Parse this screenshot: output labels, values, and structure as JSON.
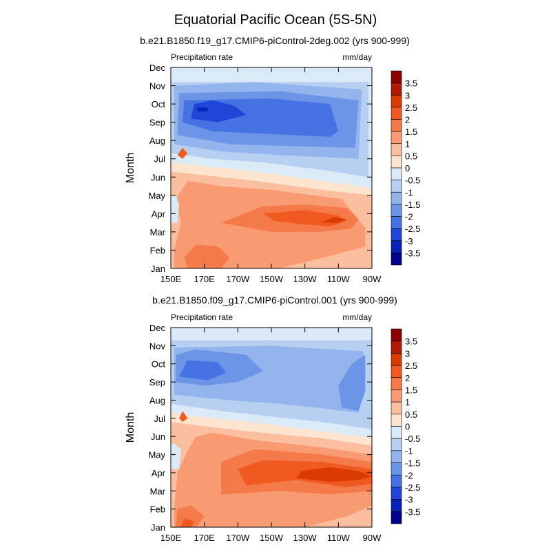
{
  "figure": {
    "title": "Equatorial Pacific Ocean (5S-5N)"
  },
  "colorbar": {
    "labels": [
      "3.5",
      "3",
      "2.5",
      "2",
      "1.5",
      "1",
      "0.5",
      "0",
      "-0.5",
      "-1",
      "-1.5",
      "-2",
      "-2.5",
      "-3",
      "-3.5"
    ],
    "colors": [
      "#8b0000",
      "#b31b00",
      "#d93a00",
      "#f05a20",
      "#f57a4a",
      "#f89a72",
      "#fbbf9f",
      "#fde4cf",
      "#dbeaf7",
      "#b7cff0",
      "#93b4ec",
      "#6d95e7",
      "#4772e3",
      "#2145d7",
      "#0821b9",
      "#00008b"
    ]
  },
  "chart_data": [
    {
      "type": "contour",
      "subtitle": "b.e21.B1850.f19_g17.CMIP6-piControl-2deg.002 (yrs 900-999)",
      "left_label": "Precipitation rate",
      "right_label": "mm/day",
      "ylabel": "Month",
      "xlabel": "",
      "x_ticks": [
        "150E",
        "170E",
        "170W",
        "150W",
        "130W",
        "110W",
        "90W"
      ],
      "y_ticks": [
        "Jan",
        "Feb",
        "Mar",
        "Apr",
        "May",
        "Jun",
        "Jul",
        "Aug",
        "Sep",
        "Oct",
        "Nov",
        "Dec"
      ],
      "xlim": [
        150,
        270
      ],
      "ylim": [
        1,
        12
      ],
      "regions": [
        {
          "level": 0.75,
          "pts": [
            [
              150,
              1
            ],
            [
              270,
              1
            ],
            [
              270,
              5.2
            ],
            [
              240,
              5.6
            ],
            [
              200,
              6.0
            ],
            [
              170,
              6.2
            ],
            [
              150,
              6.5
            ]
          ]
        },
        {
          "level": 1.25,
          "pts": [
            [
              152,
              1
            ],
            [
              215,
              1
            ],
            [
              250,
              1.8
            ],
            [
              266,
              2.2
            ],
            [
              266,
              3.2
            ],
            [
              252,
              4.8
            ],
            [
              210,
              5.3
            ],
            [
              180,
              5.5
            ],
            [
              160,
              5.8
            ],
            [
              153,
              4.8
            ],
            [
              156,
              3.5
            ],
            [
              152,
              2
            ]
          ]
        },
        {
          "level": 1.75,
          "pts": [
            [
              180,
              3.5
            ],
            [
              205,
              4.4
            ],
            [
              230,
              4.5
            ],
            [
              255,
              4.3
            ],
            [
              262,
              3.7
            ],
            [
              258,
              3.2
            ],
            [
              240,
              3.0
            ],
            [
              210,
              3.0
            ]
          ]
        },
        {
          "level": 2.25,
          "pts": [
            [
              205,
              4.0
            ],
            [
              230,
              4.2
            ],
            [
              250,
              3.9
            ],
            [
              255,
              3.6
            ],
            [
              245,
              3.3
            ],
            [
              230,
              3.4
            ],
            [
              212,
              3.6
            ]
          ]
        },
        {
          "level": 2.75,
          "pts": [
            [
              240,
              3.5
            ],
            [
              250,
              3.5
            ],
            [
              255,
              3.7
            ],
            [
              247,
              3.8
            ]
          ]
        },
        {
          "level": 1.75,
          "pts": [
            [
              160,
              1
            ],
            [
              180,
              1
            ],
            [
              185,
              1.6
            ],
            [
              178,
              2.2
            ],
            [
              165,
              2.3
            ],
            [
              158,
              1.6
            ]
          ]
        },
        {
          "level": 0.25,
          "pts": [
            [
              150,
              6.3
            ],
            [
              170,
              6.1
            ],
            [
              200,
              5.8
            ],
            [
              240,
              5.3
            ],
            [
              270,
              5.0
            ],
            [
              270,
              5.4
            ],
            [
              240,
              5.8
            ],
            [
              200,
              6.3
            ],
            [
              170,
              6.6
            ],
            [
              150,
              6.8
            ]
          ]
        },
        {
          "level": -0.25,
          "pts": [
            [
              150,
              3.5
            ],
            [
              154,
              3.5
            ],
            [
              155,
              4.5
            ],
            [
              153,
              5.0
            ],
            [
              150,
              5.0
            ]
          ]
        },
        {
          "level": -0.25,
          "pts": [
            [
              150,
              6.8
            ],
            [
              170,
              6.6
            ],
            [
              200,
              6.3
            ],
            [
              240,
              5.8
            ],
            [
              270,
              5.4
            ],
            [
              270,
              12
            ],
            [
              150,
              12
            ]
          ]
        },
        {
          "level": -0.75,
          "pts": [
            [
              150,
              7.3
            ],
            [
              175,
              7.0
            ],
            [
              205,
              6.8
            ],
            [
              240,
              6.4
            ],
            [
              268,
              6.0
            ],
            [
              268,
              11.2
            ],
            [
              150,
              11.2
            ]
          ]
        },
        {
          "level": -1.25,
          "pts": [
            [
              152,
              7.8
            ],
            [
              180,
              7.4
            ],
            [
              215,
              7.2
            ],
            [
              262,
              7.0
            ],
            [
              264,
              10.8
            ],
            [
              200,
              11.2
            ],
            [
              152,
              11.0
            ]
          ]
        },
        {
          "level": -1.75,
          "pts": [
            [
              154,
              8.3
            ],
            [
              185,
              7.8
            ],
            [
              220,
              7.7
            ],
            [
              260,
              7.6
            ],
            [
              262,
              10.2
            ],
            [
              215,
              10.7
            ],
            [
              155,
              10.6
            ]
          ]
        },
        {
          "level": -2.25,
          "pts": [
            [
              157,
              9.0
            ],
            [
              175,
              8.5
            ],
            [
              200,
              8.4
            ],
            [
              245,
              8.2
            ],
            [
              250,
              8.5
            ],
            [
              245,
              10.0
            ],
            [
              210,
              10.3
            ],
            [
              158,
              10.2
            ]
          ]
        },
        {
          "level": -2.75,
          "pts": [
            [
              162,
              9.2
            ],
            [
              178,
              9.0
            ],
            [
              195,
              9.4
            ],
            [
              188,
              9.9
            ],
            [
              175,
              10.2
            ],
            [
              164,
              10.0
            ]
          ]
        },
        {
          "level": -3.25,
          "pts": [
            [
              166,
              9.6
            ],
            [
              172,
              9.6
            ],
            [
              172,
              9.8
            ],
            [
              166,
              9.8
            ]
          ]
        },
        {
          "level": 2.25,
          "pts": [
            [
              154,
              7.2
            ],
            [
              157,
              7.0
            ],
            [
              160,
              7.3
            ],
            [
              157,
              7.6
            ]
          ]
        }
      ]
    },
    {
      "type": "contour",
      "subtitle": "b.e21.B1850.f09_g17.CMIP6-piControl.001 (yrs 900-999)",
      "left_label": "Precipitation rate",
      "right_label": "mm/day",
      "ylabel": "Month",
      "xlabel": "",
      "x_ticks": [
        "150E",
        "170E",
        "170W",
        "150W",
        "130W",
        "110W",
        "90W"
      ],
      "y_ticks": [
        "Jan",
        "Feb",
        "Mar",
        "Apr",
        "May",
        "Jun",
        "Jul",
        "Aug",
        "Sep",
        "Oct",
        "Nov",
        "Dec"
      ],
      "xlim": [
        150,
        270
      ],
      "ylim": [
        1,
        12
      ],
      "regions": [
        {
          "level": 0.75,
          "pts": [
            [
              150,
              1
            ],
            [
              270,
              1
            ],
            [
              270,
              5.6
            ],
            [
              240,
              6.0
            ],
            [
              200,
              6.4
            ],
            [
              170,
              6.6
            ],
            [
              150,
              7.0
            ]
          ]
        },
        {
          "level": 1.25,
          "pts": [
            [
              152,
              1
            ],
            [
              230,
              1
            ],
            [
              255,
              1.6
            ],
            [
              270,
              2.2
            ],
            [
              270,
              5.0
            ],
            [
              240,
              5.4
            ],
            [
              200,
              5.8
            ],
            [
              175,
              6.2
            ],
            [
              165,
              6.0
            ],
            [
              160,
              5.2
            ],
            [
              154,
              4.0
            ],
            [
              152,
              2
            ]
          ]
        },
        {
          "level": 1.75,
          "pts": [
            [
              180,
              2.8
            ],
            [
              215,
              3.0
            ],
            [
              245,
              2.8
            ],
            [
              270,
              3.0
            ],
            [
              270,
              4.6
            ],
            [
              240,
              5.0
            ],
            [
              200,
              5.3
            ],
            [
              180,
              4.6
            ]
          ]
        },
        {
          "level": 2.25,
          "pts": [
            [
              195,
              3.3
            ],
            [
              225,
              3.6
            ],
            [
              255,
              3.2
            ],
            [
              270,
              3.4
            ],
            [
              270,
              4.2
            ],
            [
              240,
              4.6
            ],
            [
              205,
              4.7
            ],
            [
              190,
              4.2
            ]
          ]
        },
        {
          "level": 2.75,
          "pts": [
            [
              225,
              3.7
            ],
            [
              245,
              3.5
            ],
            [
              262,
              3.6
            ],
            [
              270,
              3.8
            ],
            [
              262,
              4.1
            ],
            [
              245,
              4.3
            ],
            [
              228,
              4.1
            ]
          ]
        },
        {
          "level": 1.75,
          "pts": [
            [
              153,
              1
            ],
            [
              165,
              1
            ],
            [
              170,
              1.6
            ],
            [
              162,
              2.2
            ],
            [
              154,
              2.0
            ]
          ]
        },
        {
          "level": 2.25,
          "pts": [
            [
              156,
              1
            ],
            [
              162,
              1
            ],
            [
              164,
              1.3
            ],
            [
              158,
              1.5
            ]
          ]
        },
        {
          "level": 0.25,
          "pts": [
            [
              150,
              6.8
            ],
            [
              175,
              6.5
            ],
            [
              205,
              6.2
            ],
            [
              240,
              5.9
            ],
            [
              270,
              5.5
            ],
            [
              270,
              5.9
            ],
            [
              240,
              6.3
            ],
            [
              205,
              6.7
            ],
            [
              175,
              7.0
            ],
            [
              150,
              7.3
            ]
          ]
        },
        {
          "level": -0.25,
          "pts": [
            [
              150,
              4.2
            ],
            [
              155,
              4.2
            ],
            [
              156,
              5.3
            ],
            [
              152,
              5.6
            ],
            [
              150,
              5.6
            ]
          ]
        },
        {
          "level": -0.25,
          "pts": [
            [
              150,
              7.3
            ],
            [
              175,
              7.0
            ],
            [
              205,
              6.7
            ],
            [
              240,
              6.3
            ],
            [
              270,
              5.9
            ],
            [
              270,
              12
            ],
            [
              150,
              12
            ]
          ]
        },
        {
          "level": -0.75,
          "pts": [
            [
              150,
              7.8
            ],
            [
              180,
              7.4
            ],
            [
              210,
              7.1
            ],
            [
              240,
              6.8
            ],
            [
              270,
              6.4
            ],
            [
              270,
              11.3
            ],
            [
              150,
              11.3
            ]
          ]
        },
        {
          "level": -1.25,
          "pts": [
            [
              152,
              8.3
            ],
            [
              185,
              8.0
            ],
            [
              215,
              7.8
            ],
            [
              245,
              7.5
            ],
            [
              262,
              7.3
            ],
            [
              265,
              10.7
            ],
            [
              210,
              11.0
            ],
            [
              152,
              10.9
            ]
          ]
        },
        {
          "level": -1.75,
          "pts": [
            [
              252,
              7.6
            ],
            [
              262,
              7.4
            ],
            [
              266,
              8.5
            ],
            [
              266,
              10.5
            ],
            [
              258,
              10.0
            ],
            [
              250,
              8.8
            ]
          ]
        },
        {
          "level": -1.75,
          "pts": [
            [
              153,
              9.0
            ],
            [
              170,
              8.8
            ],
            [
              190,
              9.0
            ],
            [
              205,
              9.6
            ],
            [
              195,
              10.5
            ],
            [
              165,
              10.8
            ],
            [
              153,
              10.5
            ]
          ]
        },
        {
          "level": -2.25,
          "pts": [
            [
              155,
              9.3
            ],
            [
              172,
              9.1
            ],
            [
              183,
              9.5
            ],
            [
              178,
              10.1
            ],
            [
              160,
              10.2
            ]
          ]
        },
        {
          "level": 2.25,
          "pts": [
            [
              155,
              7.0
            ],
            [
              157,
              6.8
            ],
            [
              160,
              7.0
            ],
            [
              157,
              7.4
            ]
          ]
        }
      ]
    }
  ]
}
